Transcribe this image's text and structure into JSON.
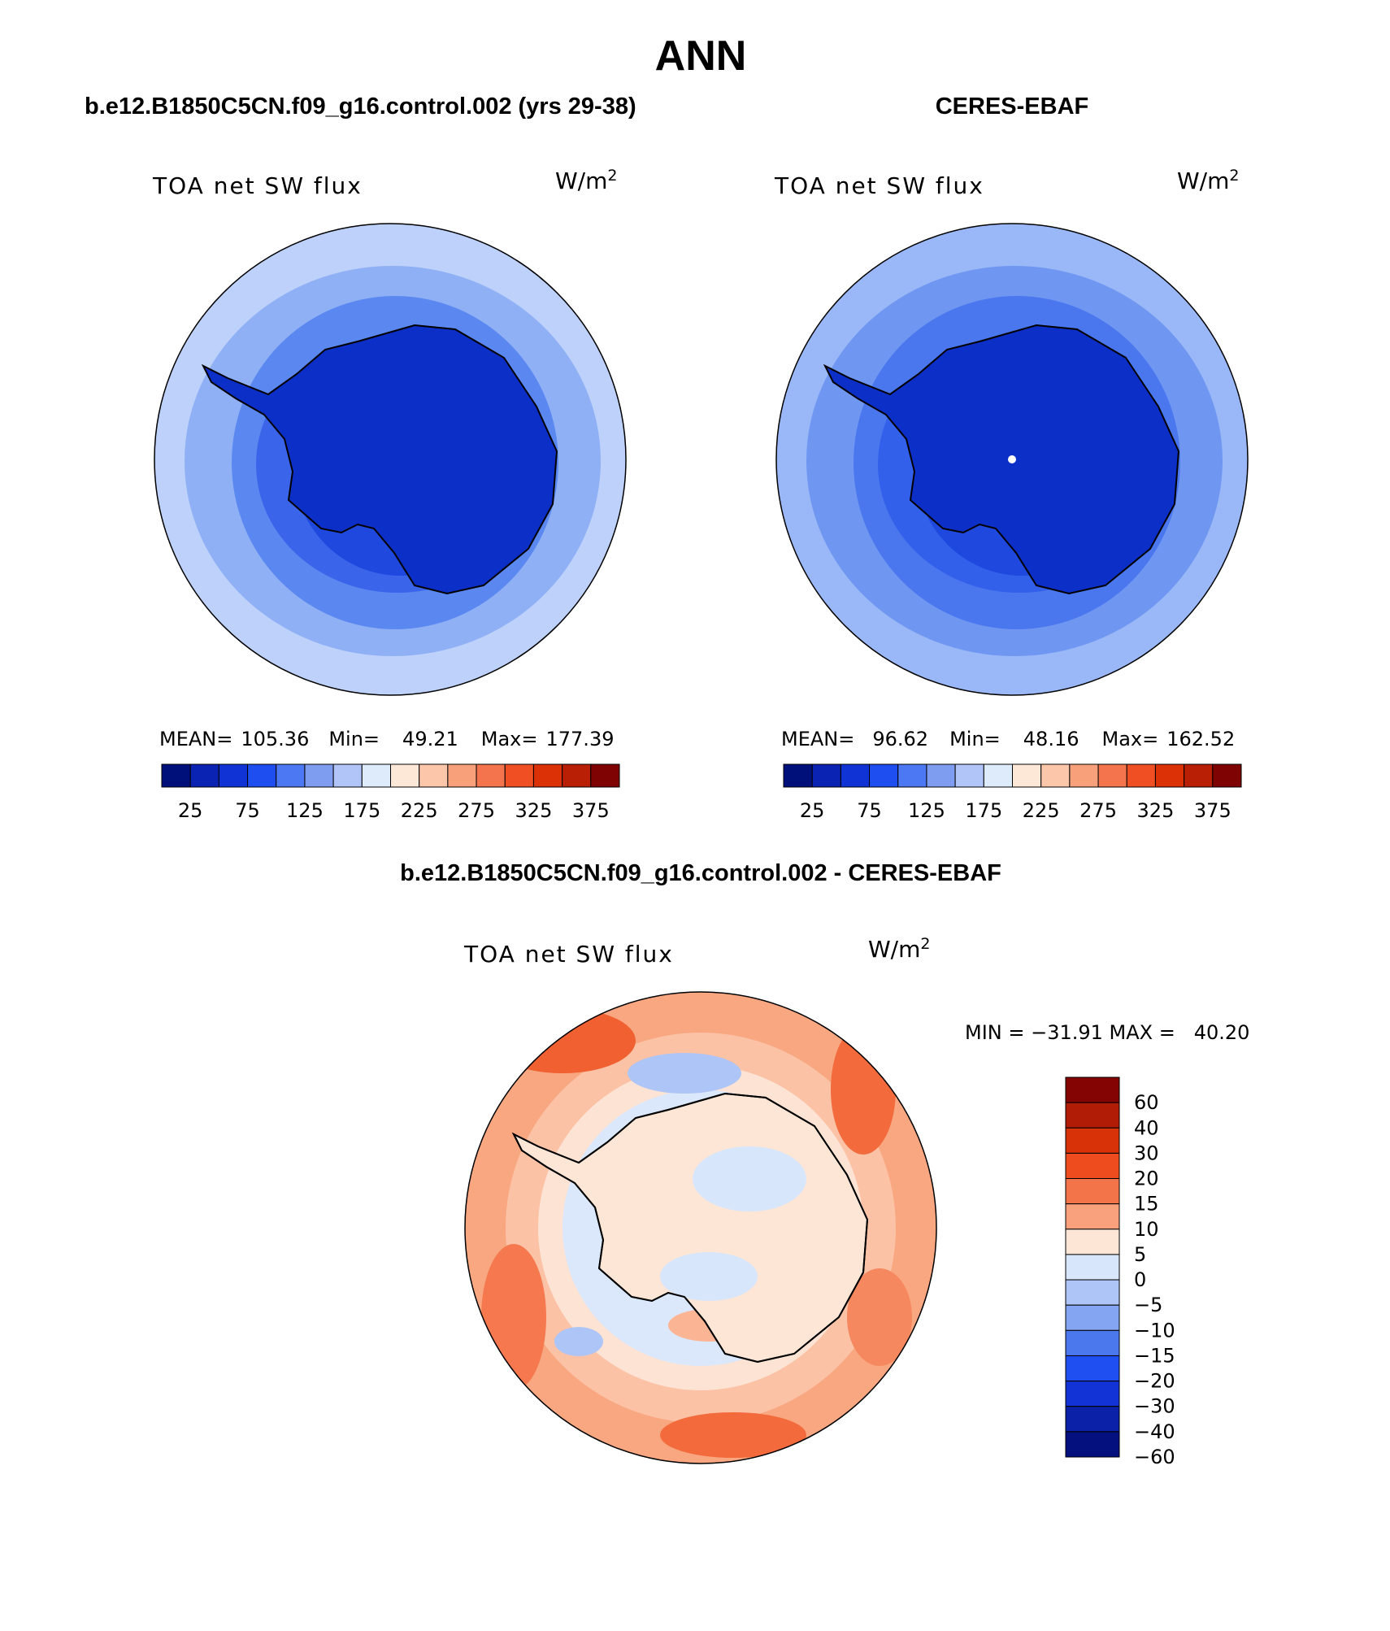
{
  "page_title": "ANN",
  "panels": [
    {
      "id": "model",
      "heading": "b.e12.B1850C5CN.f09_g16.control.002 (yrs 29-38)",
      "variable": "TOA net SW flux",
      "units": "W/m",
      "units_exp": "2",
      "stats": {
        "mean_label": "MEAN=",
        "mean": "105.36",
        "min_label": "Min=",
        "min": "49.21",
        "max_label": "Max=",
        "max": "177.39"
      },
      "colorbar_labels": [
        "25",
        "75",
        "125",
        "175",
        "225",
        "275",
        "325",
        "375"
      ],
      "field_colors": [
        "#bdd1fb",
        "#8fb0f5",
        "#5b88f0",
        "#3a65ea",
        "#1e48de",
        "#0c2fc7"
      ]
    },
    {
      "id": "obs",
      "heading": "CERES-EBAF",
      "variable": "TOA net SW flux",
      "units": "W/m",
      "units_exp": "2",
      "stats": {
        "mean_label": "MEAN=",
        "mean": "96.62",
        "min_label": "Min=",
        "min": "48.16",
        "max_label": "Max=",
        "max": "162.52"
      },
      "colorbar_labels": [
        "25",
        "75",
        "125",
        "175",
        "225",
        "275",
        "325",
        "375"
      ],
      "field_colors": [
        "#9ab8f7",
        "#6f97f2",
        "#4a77ee",
        "#3360ea",
        "#1e48de",
        "#0c2fc7"
      ]
    },
    {
      "id": "diff",
      "heading": "b.e12.B1850C5CN.f09_g16.control.002 - CERES-EBAF",
      "variable": "TOA net SW flux",
      "units": "W/m",
      "units_exp": "2",
      "stats_line": "MIN = −31.91 MAX =   40.20",
      "colorbar_labels": [
        "60",
        "40",
        "30",
        "20",
        "15",
        "10",
        "5",
        "0",
        "−5",
        "−10",
        "−15",
        "−20",
        "−30",
        "−40",
        "−60"
      ]
    }
  ],
  "colormaps": {
    "abs": [
      "#00107a",
      "#0a23b2",
      "#1033d6",
      "#1f4ef0",
      "#4d78f4",
      "#7f9df0",
      "#b1c5f9",
      "#deebfb",
      "#fde7d6",
      "#fbc6a9",
      "#f8a07a",
      "#f4754d",
      "#ef4f23",
      "#dc3106",
      "#b81f05",
      "#800303"
    ],
    "diff": [
      "#840303",
      "#b01c05",
      "#d83208",
      "#ee4b1e",
      "#f4744a",
      "#f9a07c",
      "#fde6d6",
      "#d7e6fb",
      "#aec5f7",
      "#83a5f2",
      "#4c78ee",
      "#1f4ff0",
      "#1234d6",
      "#0a21a8",
      "#04107e"
    ]
  }
}
